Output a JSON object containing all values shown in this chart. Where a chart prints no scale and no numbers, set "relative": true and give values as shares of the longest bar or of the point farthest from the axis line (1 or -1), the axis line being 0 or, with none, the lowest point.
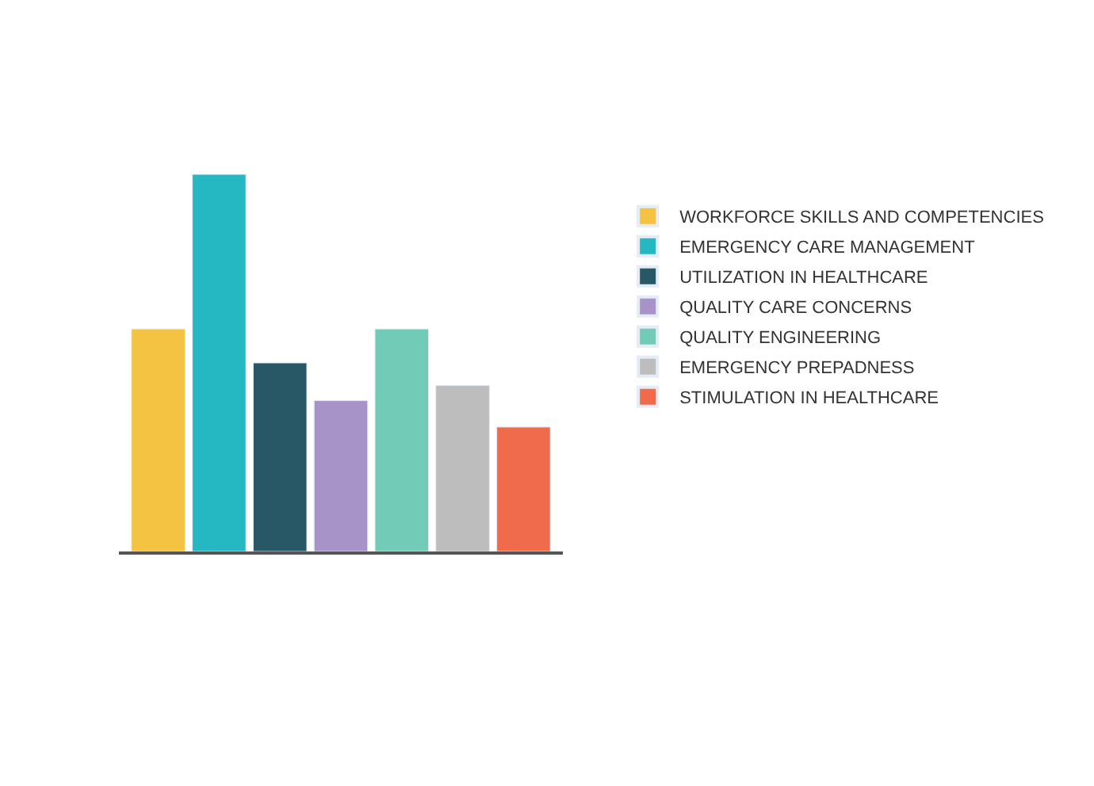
{
  "chart_data": {
    "type": "bar",
    "relative": true,
    "legend": "right",
    "categories": [
      null
    ],
    "series": [
      {
        "name": "WORKFORCE SKILLS AND COMPETENCIES",
        "color": "#f5c342",
        "values": [
          0.59
        ]
      },
      {
        "name": "EMERGENCY CARE MANAGEMENT",
        "color": "#25b8c3",
        "values": [
          1
        ]
      },
      {
        "name": "UTILIZATION IN HEALTHCARE",
        "color": "#285766",
        "values": [
          0.5
        ]
      },
      {
        "name": "QUALITY CARE CONCERNS",
        "color": "#a793c8",
        "values": [
          0.4
        ]
      },
      {
        "name": "QUALITY ENGINEERING",
        "color": "#72cbb6",
        "values": [
          0.59
        ]
      },
      {
        "name": "EMERGENCY PREPADNESS",
        "color": "#bdbdbd",
        "values": [
          0.44
        ]
      },
      {
        "name": "STIMULATION IN HEALTHCARE",
        "color": "#ef6b4b",
        "values": [
          0.33
        ]
      }
    ]
  }
}
